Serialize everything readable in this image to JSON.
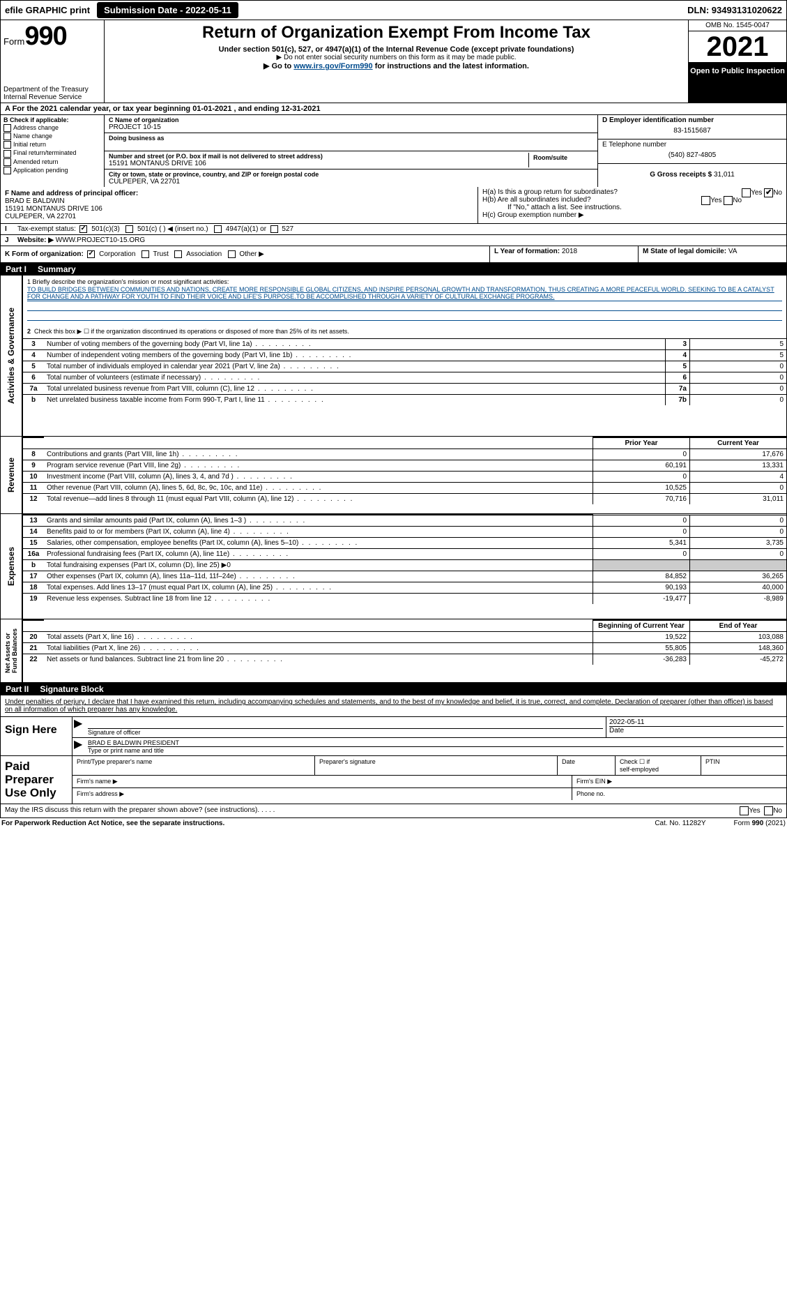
{
  "topbar": {
    "efile_label": "efile GRAPHIC print",
    "submission_label": "Submission Date - 2022-05-11",
    "dln": "DLN: 93493131020622"
  },
  "header": {
    "form_label": "Form",
    "form_number": "990",
    "dept": "Department of the Treasury\nInternal Revenue Service",
    "title": "Return of Organization Exempt From Income Tax",
    "under": "Under section 501(c), 527, or 4947(a)(1) of the Internal Revenue Code (except private foundations)",
    "donot": "▶ Do not enter social security numbers on this form as it may be made public.",
    "goto_pre": "▶ Go to ",
    "goto_link": "www.irs.gov/Form990",
    "goto_post": " for instructions and the latest information.",
    "omb": "OMB No. 1545-0047",
    "year": "2021",
    "open": "Open to Public Inspection"
  },
  "period": "A For the 2021 calendar year, or tax year beginning 01-01-2021    , and ending 12-31-2021",
  "boxB": {
    "label": "B Check if applicable:",
    "items": [
      "Address change",
      "Name change",
      "Initial return",
      "Final return/terminated",
      "Amended return",
      "Application pending"
    ]
  },
  "org": {
    "c_label": "C Name of organization",
    "name": "PROJECT 10-15",
    "dba_label": "Doing business as",
    "addr_label": "Number and street (or P.O. box if mail is not delivered to street address)",
    "room_label": "Room/suite",
    "street": "15191 MONTANUS DRIVE 106",
    "city_label": "City or town, state or province, country, and ZIP or foreign postal code",
    "city": "CULPEPER, VA  22701",
    "d_label": "D Employer identification number",
    "ein": "83-1515687",
    "e_label": "E Telephone number",
    "phone": "(540) 827-4805",
    "g_label": "G Gross receipts $",
    "gross": "31,011"
  },
  "F": {
    "label": "F  Name and address of principal officer:",
    "name": "BRAD E BALDWIN",
    "street": "15191 MONTANUS DRIVE 106",
    "city": "CULPEPER, VA  22701"
  },
  "H": {
    "a": "H(a)  Is this a group return for subordinates?",
    "b": "H(b)  Are all subordinates included?",
    "b2": "If \"No,\" attach a list. See instructions.",
    "c": "H(c)  Group exemption number ▶",
    "yes": "Yes",
    "no": "No"
  },
  "I": {
    "label": "Tax-exempt status:",
    "opts": [
      "501(c)(3)",
      "501(c) (  ) ◀ (insert no.)",
      "4947(a)(1) or",
      "527"
    ]
  },
  "J": {
    "label": "Website: ▶",
    "val": "WWW.PROJECT10-15.ORG"
  },
  "K": {
    "label": "K Form of organization:",
    "opts": [
      "Corporation",
      "Trust",
      "Association",
      "Other ▶"
    ]
  },
  "L": {
    "label": "L Year of formation:",
    "val": "2018"
  },
  "M": {
    "label": "M State of legal domicile:",
    "val": "VA"
  },
  "part1": {
    "hdr_part": "Part I",
    "hdr_title": "Summary",
    "q1": "1  Briefly describe the organization's mission or most significant activities:",
    "mission": "TO BUILD BRIDGES BETWEEN COMMUNITIES AND NATIONS, CREATE MORE RESPONSIBLE GLOBAL CITIZENS, AND INSPIRE PERSONAL GROWTH AND TRANSFORMATION, THUS CREATING A MORE PEACEFUL WORLD. SEEKING TO BE A CATALYST FOR CHANGE AND A PATHWAY FOR YOUTH TO FIND THEIR VOICE AND LIFE'S PURPOSE.TO BE ACCOMPLISHED THROUGH A VARIETY OF CULTURAL EXCHANGE PROGRAMS.",
    "q2": "Check this box ▶ ☐  if the organization discontinued its operations or disposed of more than 25% of its net assets.",
    "rows_ag": [
      {
        "n": "3",
        "d": "Number of voting members of the governing body (Part VI, line 1a)",
        "k": "3",
        "v": "5"
      },
      {
        "n": "4",
        "d": "Number of independent voting members of the governing body (Part VI, line 1b)",
        "k": "4",
        "v": "5"
      },
      {
        "n": "5",
        "d": "Total number of individuals employed in calendar year 2021 (Part V, line 2a)",
        "k": "5",
        "v": "0"
      },
      {
        "n": "6",
        "d": "Total number of volunteers (estimate if necessary)",
        "k": "6",
        "v": "0"
      },
      {
        "n": "7a",
        "d": "Total unrelated business revenue from Part VIII, column (C), line 12",
        "k": "7a",
        "v": "0"
      },
      {
        "n": "b",
        "d": "Net unrelated business taxable income from Form 990-T, Part I, line 11",
        "k": "7b",
        "v": "0"
      }
    ],
    "col_prior": "Prior Year",
    "col_curr": "Current Year",
    "rows_rev": [
      {
        "n": "8",
        "d": "Contributions and grants (Part VIII, line 1h)",
        "p": "0",
        "c": "17,676"
      },
      {
        "n": "9",
        "d": "Program service revenue (Part VIII, line 2g)",
        "p": "60,191",
        "c": "13,331"
      },
      {
        "n": "10",
        "d": "Investment income (Part VIII, column (A), lines 3, 4, and 7d )",
        "p": "0",
        "c": "4"
      },
      {
        "n": "11",
        "d": "Other revenue (Part VIII, column (A), lines 5, 6d, 8c, 9c, 10c, and 11e)",
        "p": "10,525",
        "c": "0"
      },
      {
        "n": "12",
        "d": "Total revenue—add lines 8 through 11 (must equal Part VIII, column (A), line 12)",
        "p": "70,716",
        "c": "31,011"
      }
    ],
    "rows_exp": [
      {
        "n": "13",
        "d": "Grants and similar amounts paid (Part IX, column (A), lines 1–3 )",
        "p": "0",
        "c": "0"
      },
      {
        "n": "14",
        "d": "Benefits paid to or for members (Part IX, column (A), line 4)",
        "p": "0",
        "c": "0"
      },
      {
        "n": "15",
        "d": "Salaries, other compensation, employee benefits (Part IX, column (A), lines 5–10)",
        "p": "5,341",
        "c": "3,735"
      },
      {
        "n": "16a",
        "d": "Professional fundraising fees (Part IX, column (A), line 11e)",
        "p": "0",
        "c": "0"
      },
      {
        "n": "b",
        "d": "Total fundraising expenses (Part IX, column (D), line 25) ▶0",
        "p": "",
        "c": "",
        "shade": true
      },
      {
        "n": "17",
        "d": "Other expenses (Part IX, column (A), lines 11a–11d, 11f–24e)",
        "p": "84,852",
        "c": "36,265"
      },
      {
        "n": "18",
        "d": "Total expenses. Add lines 13–17 (must equal Part IX, column (A), line 25)",
        "p": "90,193",
        "c": "40,000"
      },
      {
        "n": "19",
        "d": "Revenue less expenses. Subtract line 18 from line 12",
        "p": "-19,477",
        "c": "-8,989"
      }
    ],
    "col_beg": "Beginning of Current Year",
    "col_end": "End of Year",
    "rows_na": [
      {
        "n": "20",
        "d": "Total assets (Part X, line 16)",
        "p": "19,522",
        "c": "103,088"
      },
      {
        "n": "21",
        "d": "Total liabilities (Part X, line 26)",
        "p": "55,805",
        "c": "148,360"
      },
      {
        "n": "22",
        "d": "Net assets or fund balances. Subtract line 21 from line 20",
        "p": "-36,283",
        "c": "-45,272"
      }
    ],
    "vtab_ag": "Activities & Governance",
    "vtab_rev": "Revenue",
    "vtab_exp": "Expenses",
    "vtab_na": "Net Assets or\nFund Balances"
  },
  "part2": {
    "hdr_part": "Part II",
    "hdr_title": "Signature Block",
    "perjury": "Under penalties of perjury, I declare that I have examined this return, including accompanying schedules and statements, and to the best of my knowledge and belief, it is true, correct, and complete. Declaration of preparer (other than officer) is based on all information of which preparer has any knowledge."
  },
  "sign": {
    "label": "Sign Here",
    "sig_of": "Signature of officer",
    "date": "Date",
    "date_val": "2022-05-11",
    "name": "BRAD E BALDWIN  PRESIDENT",
    "type_label": "Type or print name and title"
  },
  "prep": {
    "label": "Paid Preparer Use Only",
    "c1": "Print/Type preparer's name",
    "c2": "Preparer's signature",
    "c3": "Date",
    "c4a": "Check ☐ if",
    "c4b": "self-employed",
    "c5": "PTIN",
    "firm_name": "Firm's name    ▶",
    "firm_ein": "Firm's EIN ▶",
    "firm_addr": "Firm's address ▶",
    "phone": "Phone no."
  },
  "footer": {
    "q": "May the IRS discuss this return with the preparer shown above? (see instructions)",
    "yes": "Yes",
    "no": "No"
  },
  "bottom": {
    "pra": "For Paperwork Reduction Act Notice, see the separate instructions.",
    "cat": "Cat. No. 11282Y",
    "form": "Form 990 (2021)"
  }
}
